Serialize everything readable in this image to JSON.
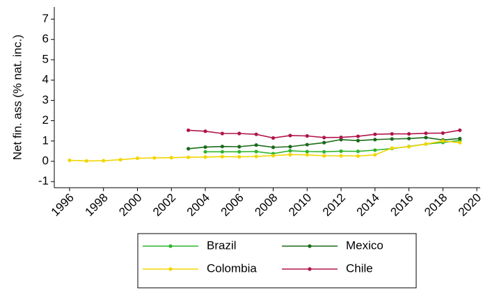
{
  "chart_data": {
    "type": "line",
    "y_label": "Net fin. ass (% nat. inc.)",
    "x": [
      1996,
      1997,
      1998,
      1999,
      2000,
      2001,
      2002,
      2003,
      2004,
      2005,
      2006,
      2007,
      2008,
      2009,
      2010,
      2011,
      2012,
      2013,
      2014,
      2015,
      2016,
      2017,
      2018,
      2019
    ],
    "xlim": [
      1995.1,
      2020.2
    ],
    "xticks": [
      1996,
      1998,
      2000,
      2002,
      2004,
      2006,
      2008,
      2010,
      2012,
      2014,
      2016,
      2018,
      2020
    ],
    "ylim": [
      -1.3,
      7.6
    ],
    "yticks": [
      -1,
      0,
      1,
      2,
      3,
      4,
      5,
      6,
      7
    ],
    "series": [
      {
        "name": "Brazil",
        "color": "#2db52d",
        "values": [
          null,
          null,
          null,
          null,
          null,
          null,
          null,
          null,
          0.47,
          0.47,
          0.47,
          0.48,
          0.38,
          0.52,
          0.48,
          0.47,
          0.5,
          0.49,
          0.55,
          0.63,
          0.73,
          0.85,
          0.93,
          1.02
        ]
      },
      {
        "name": "Mexico",
        "color": "#1a6b1a",
        "values": [
          null,
          null,
          null,
          null,
          null,
          null,
          null,
          0.62,
          0.7,
          0.73,
          0.72,
          0.8,
          0.69,
          0.72,
          0.82,
          0.92,
          1.07,
          1.02,
          1.07,
          1.1,
          1.12,
          1.17,
          1.05,
          1.12
        ]
      },
      {
        "name": "Colombia",
        "color": "#f2d500",
        "values": [
          0.05,
          0.02,
          0.03,
          0.08,
          0.15,
          0.17,
          0.18,
          0.2,
          0.21,
          0.23,
          0.22,
          0.24,
          0.28,
          0.33,
          0.32,
          0.27,
          0.27,
          0.26,
          0.32,
          0.65,
          0.72,
          0.85,
          1.0,
          0.92
        ]
      },
      {
        "name": "Chile",
        "color": "#b0144a",
        "values": [
          null,
          null,
          null,
          null,
          null,
          null,
          null,
          1.53,
          1.48,
          1.37,
          1.37,
          1.33,
          1.15,
          1.27,
          1.25,
          1.17,
          1.18,
          1.23,
          1.33,
          1.35,
          1.35,
          1.38,
          1.39,
          1.53
        ]
      }
    ]
  }
}
